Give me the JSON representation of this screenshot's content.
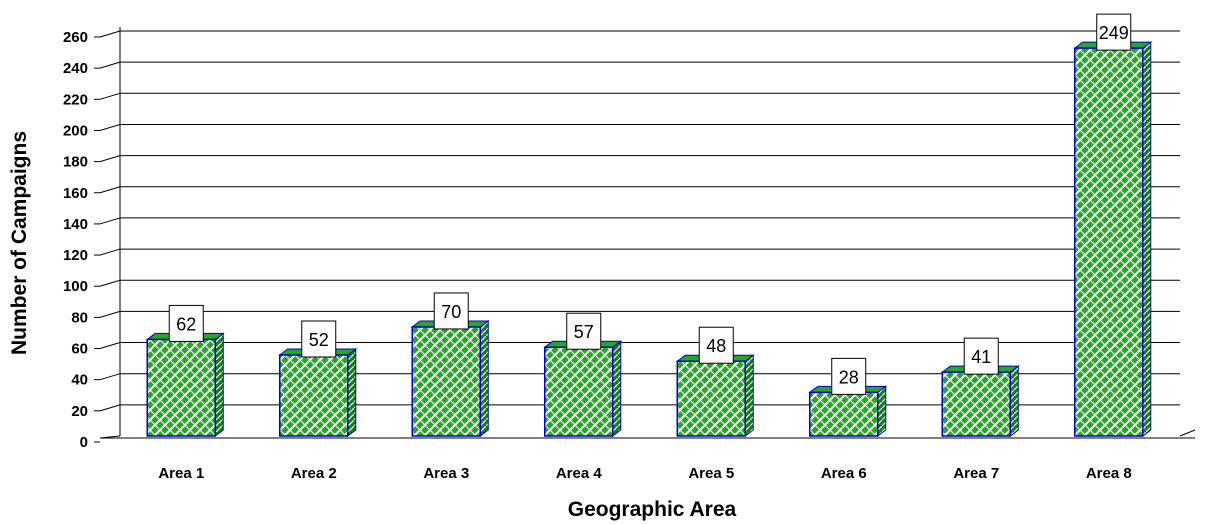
{
  "chart_data": {
    "type": "bar",
    "title": "",
    "xlabel": "Geographic Area",
    "ylabel": "Number of Campaigns",
    "categories": [
      "Area 1",
      "Area 2",
      "Area 3",
      "Area 4",
      "Area 5",
      "Area 6",
      "Area 7",
      "Area 8"
    ],
    "values": [
      62,
      52,
      70,
      57,
      48,
      28,
      41,
      249
    ],
    "ylim": [
      0,
      260
    ],
    "yticks": [
      0,
      20,
      40,
      60,
      80,
      100,
      120,
      140,
      160,
      180,
      200,
      220,
      240,
      260
    ],
    "grid": true,
    "data_labels": true,
    "colors": {
      "bar_fill": "#22aa22",
      "bar_pattern": "#ffffff",
      "bar_side": "#1a7a1a",
      "bar_edge": "#0000cc",
      "grid": "#000000"
    }
  }
}
